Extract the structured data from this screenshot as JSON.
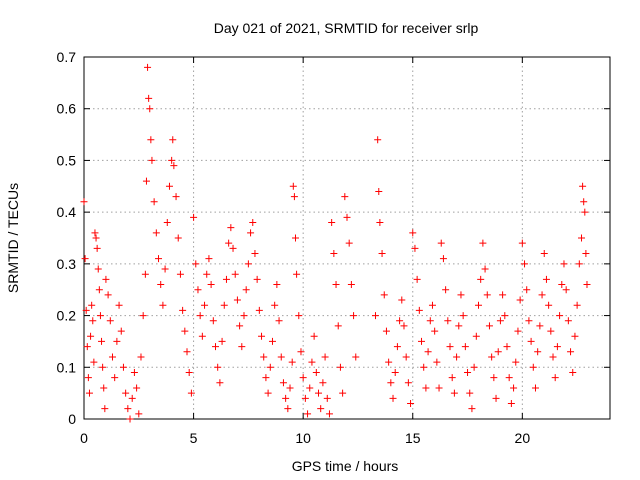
{
  "chart_data": {
    "type": "scatter",
    "title": "Day 021 of 2021, SRMTID for receiver srlp",
    "xlabel": "GPS time / hours",
    "ylabel": "SRMTID / TECUs",
    "xlim": [
      0,
      24
    ],
    "ylim": [
      0,
      0.7
    ],
    "xticks": [
      0,
      5,
      10,
      15,
      20
    ],
    "yticks": [
      0,
      0.1,
      0.2,
      0.3,
      0.4,
      0.5,
      0.6,
      0.7
    ],
    "xtick_labels": [
      "0",
      "5",
      "10",
      "15",
      "20"
    ],
    "ytick_labels": [
      "0",
      "0.1",
      "0.2",
      "0.3",
      "0.4",
      "0.5",
      "0.6",
      "0.7"
    ],
    "grid": true,
    "marker": "+",
    "color": "#ff0000",
    "series": [
      {
        "name": "SRMTID",
        "points": [
          [
            0.0,
            0.42
          ],
          [
            0.05,
            0.31
          ],
          [
            0.1,
            0.21
          ],
          [
            0.15,
            0.14
          ],
          [
            0.2,
            0.08
          ],
          [
            0.25,
            0.05
          ],
          [
            0.3,
            0.16
          ],
          [
            0.35,
            0.22
          ],
          [
            0.4,
            0.19
          ],
          [
            0.45,
            0.11
          ],
          [
            0.5,
            0.36
          ],
          [
            0.55,
            0.35
          ],
          [
            0.6,
            0.33
          ],
          [
            0.65,
            0.29
          ],
          [
            0.7,
            0.25
          ],
          [
            0.75,
            0.2
          ],
          [
            0.8,
            0.15
          ],
          [
            0.85,
            0.1
          ],
          [
            0.9,
            0.06
          ],
          [
            0.95,
            0.02
          ],
          [
            1.0,
            0.27
          ],
          [
            1.1,
            0.24
          ],
          [
            1.2,
            0.19
          ],
          [
            1.3,
            0.12
          ],
          [
            1.4,
            0.08
          ],
          [
            1.5,
            0.15
          ],
          [
            1.6,
            0.22
          ],
          [
            1.7,
            0.17
          ],
          [
            1.8,
            0.1
          ],
          [
            1.9,
            0.05
          ],
          [
            2.0,
            0.02
          ],
          [
            2.1,
            0.0
          ],
          [
            2.2,
            0.04
          ],
          [
            2.3,
            0.09
          ],
          [
            2.4,
            0.06
          ],
          [
            2.5,
            0.01
          ],
          [
            2.6,
            0.12
          ],
          [
            2.7,
            0.2
          ],
          [
            2.8,
            0.28
          ],
          [
            2.85,
            0.46
          ],
          [
            2.9,
            0.68
          ],
          [
            2.95,
            0.62
          ],
          [
            3.0,
            0.6
          ],
          [
            3.05,
            0.54
          ],
          [
            3.1,
            0.5
          ],
          [
            3.2,
            0.42
          ],
          [
            3.3,
            0.36
          ],
          [
            3.4,
            0.31
          ],
          [
            3.5,
            0.26
          ],
          [
            3.6,
            0.22
          ],
          [
            3.7,
            0.29
          ],
          [
            3.8,
            0.38
          ],
          [
            3.9,
            0.45
          ],
          [
            4.0,
            0.5
          ],
          [
            4.05,
            0.54
          ],
          [
            4.1,
            0.49
          ],
          [
            4.2,
            0.43
          ],
          [
            4.3,
            0.35
          ],
          [
            4.4,
            0.28
          ],
          [
            4.5,
            0.21
          ],
          [
            4.6,
            0.17
          ],
          [
            4.7,
            0.13
          ],
          [
            4.8,
            0.09
          ],
          [
            4.9,
            0.05
          ],
          [
            5.0,
            0.39
          ],
          [
            5.1,
            0.3
          ],
          [
            5.2,
            0.25
          ],
          [
            5.3,
            0.2
          ],
          [
            5.4,
            0.16
          ],
          [
            5.5,
            0.22
          ],
          [
            5.6,
            0.28
          ],
          [
            5.7,
            0.31
          ],
          [
            5.8,
            0.26
          ],
          [
            5.9,
            0.19
          ],
          [
            6.0,
            0.14
          ],
          [
            6.1,
            0.1
          ],
          [
            6.2,
            0.07
          ],
          [
            6.3,
            0.15
          ],
          [
            6.4,
            0.22
          ],
          [
            6.5,
            0.27
          ],
          [
            6.6,
            0.34
          ],
          [
            6.7,
            0.37
          ],
          [
            6.8,
            0.33
          ],
          [
            6.9,
            0.28
          ],
          [
            7.0,
            0.23
          ],
          [
            7.1,
            0.18
          ],
          [
            7.2,
            0.14
          ],
          [
            7.3,
            0.2
          ],
          [
            7.4,
            0.25
          ],
          [
            7.5,
            0.3
          ],
          [
            7.6,
            0.36
          ],
          [
            7.7,
            0.38
          ],
          [
            7.8,
            0.32
          ],
          [
            7.9,
            0.27
          ],
          [
            8.0,
            0.21
          ],
          [
            8.1,
            0.16
          ],
          [
            8.2,
            0.12
          ],
          [
            8.3,
            0.08
          ],
          [
            8.4,
            0.05
          ],
          [
            8.5,
            0.1
          ],
          [
            8.6,
            0.15
          ],
          [
            8.7,
            0.22
          ],
          [
            8.8,
            0.26
          ],
          [
            8.9,
            0.19
          ],
          [
            9.0,
            0.12
          ],
          [
            9.1,
            0.07
          ],
          [
            9.2,
            0.04
          ],
          [
            9.3,
            0.02
          ],
          [
            9.4,
            0.06
          ],
          [
            9.5,
            0.11
          ],
          [
            9.55,
            0.45
          ],
          [
            9.6,
            0.43
          ],
          [
            9.65,
            0.35
          ],
          [
            9.7,
            0.28
          ],
          [
            9.8,
            0.2
          ],
          [
            9.9,
            0.13
          ],
          [
            10.0,
            0.08
          ],
          [
            10.1,
            0.04
          ],
          [
            10.2,
            0.01
          ],
          [
            10.3,
            0.06
          ],
          [
            10.4,
            0.11
          ],
          [
            10.5,
            0.16
          ],
          [
            10.6,
            0.09
          ],
          [
            10.7,
            0.05
          ],
          [
            10.8,
            0.02
          ],
          [
            10.9,
            0.07
          ],
          [
            11.0,
            0.12
          ],
          [
            11.1,
            0.04
          ],
          [
            11.2,
            0.01
          ],
          [
            11.3,
            0.38
          ],
          [
            11.4,
            0.32
          ],
          [
            11.5,
            0.26
          ],
          [
            11.6,
            0.18
          ],
          [
            11.7,
            0.1
          ],
          [
            11.8,
            0.05
          ],
          [
            11.9,
            0.43
          ],
          [
            12.0,
            0.39
          ],
          [
            12.1,
            0.34
          ],
          [
            12.2,
            0.26
          ],
          [
            12.3,
            0.2
          ],
          [
            12.4,
            0.12
          ],
          [
            13.3,
            0.2
          ],
          [
            13.4,
            0.54
          ],
          [
            13.45,
            0.44
          ],
          [
            13.5,
            0.38
          ],
          [
            13.6,
            0.32
          ],
          [
            13.7,
            0.24
          ],
          [
            13.8,
            0.17
          ],
          [
            13.9,
            0.11
          ],
          [
            14.0,
            0.07
          ],
          [
            14.1,
            0.04
          ],
          [
            14.2,
            0.09
          ],
          [
            14.3,
            0.14
          ],
          [
            14.4,
            0.19
          ],
          [
            14.5,
            0.23
          ],
          [
            14.6,
            0.18
          ],
          [
            14.7,
            0.12
          ],
          [
            14.8,
            0.07
          ],
          [
            14.9,
            0.03
          ],
          [
            15.0,
            0.36
          ],
          [
            15.1,
            0.33
          ],
          [
            15.2,
            0.27
          ],
          [
            15.3,
            0.21
          ],
          [
            15.4,
            0.15
          ],
          [
            15.5,
            0.1
          ],
          [
            15.6,
            0.06
          ],
          [
            15.7,
            0.13
          ],
          [
            15.8,
            0.19
          ],
          [
            15.9,
            0.22
          ],
          [
            16.0,
            0.17
          ],
          [
            16.1,
            0.11
          ],
          [
            16.2,
            0.06
          ],
          [
            16.3,
            0.34
          ],
          [
            16.4,
            0.31
          ],
          [
            16.5,
            0.25
          ],
          [
            16.6,
            0.19
          ],
          [
            16.7,
            0.14
          ],
          [
            16.8,
            0.08
          ],
          [
            16.9,
            0.05
          ],
          [
            17.0,
            0.12
          ],
          [
            17.1,
            0.18
          ],
          [
            17.2,
            0.24
          ],
          [
            17.3,
            0.2
          ],
          [
            17.4,
            0.14
          ],
          [
            17.5,
            0.09
          ],
          [
            17.6,
            0.05
          ],
          [
            17.7,
            0.02
          ],
          [
            17.8,
            0.1
          ],
          [
            17.9,
            0.16
          ],
          [
            18.0,
            0.22
          ],
          [
            18.1,
            0.27
          ],
          [
            18.2,
            0.34
          ],
          [
            18.3,
            0.29
          ],
          [
            18.4,
            0.24
          ],
          [
            18.5,
            0.18
          ],
          [
            18.6,
            0.12
          ],
          [
            18.7,
            0.08
          ],
          [
            18.8,
            0.04
          ],
          [
            18.9,
            0.13
          ],
          [
            19.0,
            0.19
          ],
          [
            19.1,
            0.24
          ],
          [
            19.2,
            0.2
          ],
          [
            19.3,
            0.14
          ],
          [
            19.4,
            0.08
          ],
          [
            19.5,
            0.03
          ],
          [
            19.6,
            0.06
          ],
          [
            19.7,
            0.11
          ],
          [
            19.8,
            0.17
          ],
          [
            19.9,
            0.23
          ],
          [
            20.0,
            0.34
          ],
          [
            20.1,
            0.3
          ],
          [
            20.2,
            0.25
          ],
          [
            20.3,
            0.19
          ],
          [
            20.4,
            0.15
          ],
          [
            20.5,
            0.1
          ],
          [
            20.6,
            0.06
          ],
          [
            20.7,
            0.13
          ],
          [
            20.8,
            0.18
          ],
          [
            20.9,
            0.24
          ],
          [
            21.0,
            0.32
          ],
          [
            21.1,
            0.27
          ],
          [
            21.2,
            0.22
          ],
          [
            21.3,
            0.17
          ],
          [
            21.4,
            0.12
          ],
          [
            21.5,
            0.08
          ],
          [
            21.6,
            0.14
          ],
          [
            21.7,
            0.2
          ],
          [
            21.8,
            0.26
          ],
          [
            21.9,
            0.3
          ],
          [
            22.0,
            0.25
          ],
          [
            22.1,
            0.19
          ],
          [
            22.2,
            0.13
          ],
          [
            22.3,
            0.09
          ],
          [
            22.4,
            0.16
          ],
          [
            22.5,
            0.22
          ],
          [
            22.6,
            0.3
          ],
          [
            22.7,
            0.35
          ],
          [
            22.75,
            0.45
          ],
          [
            22.8,
            0.42
          ],
          [
            22.85,
            0.4
          ],
          [
            22.9,
            0.32
          ],
          [
            22.95,
            0.26
          ]
        ]
      }
    ]
  }
}
